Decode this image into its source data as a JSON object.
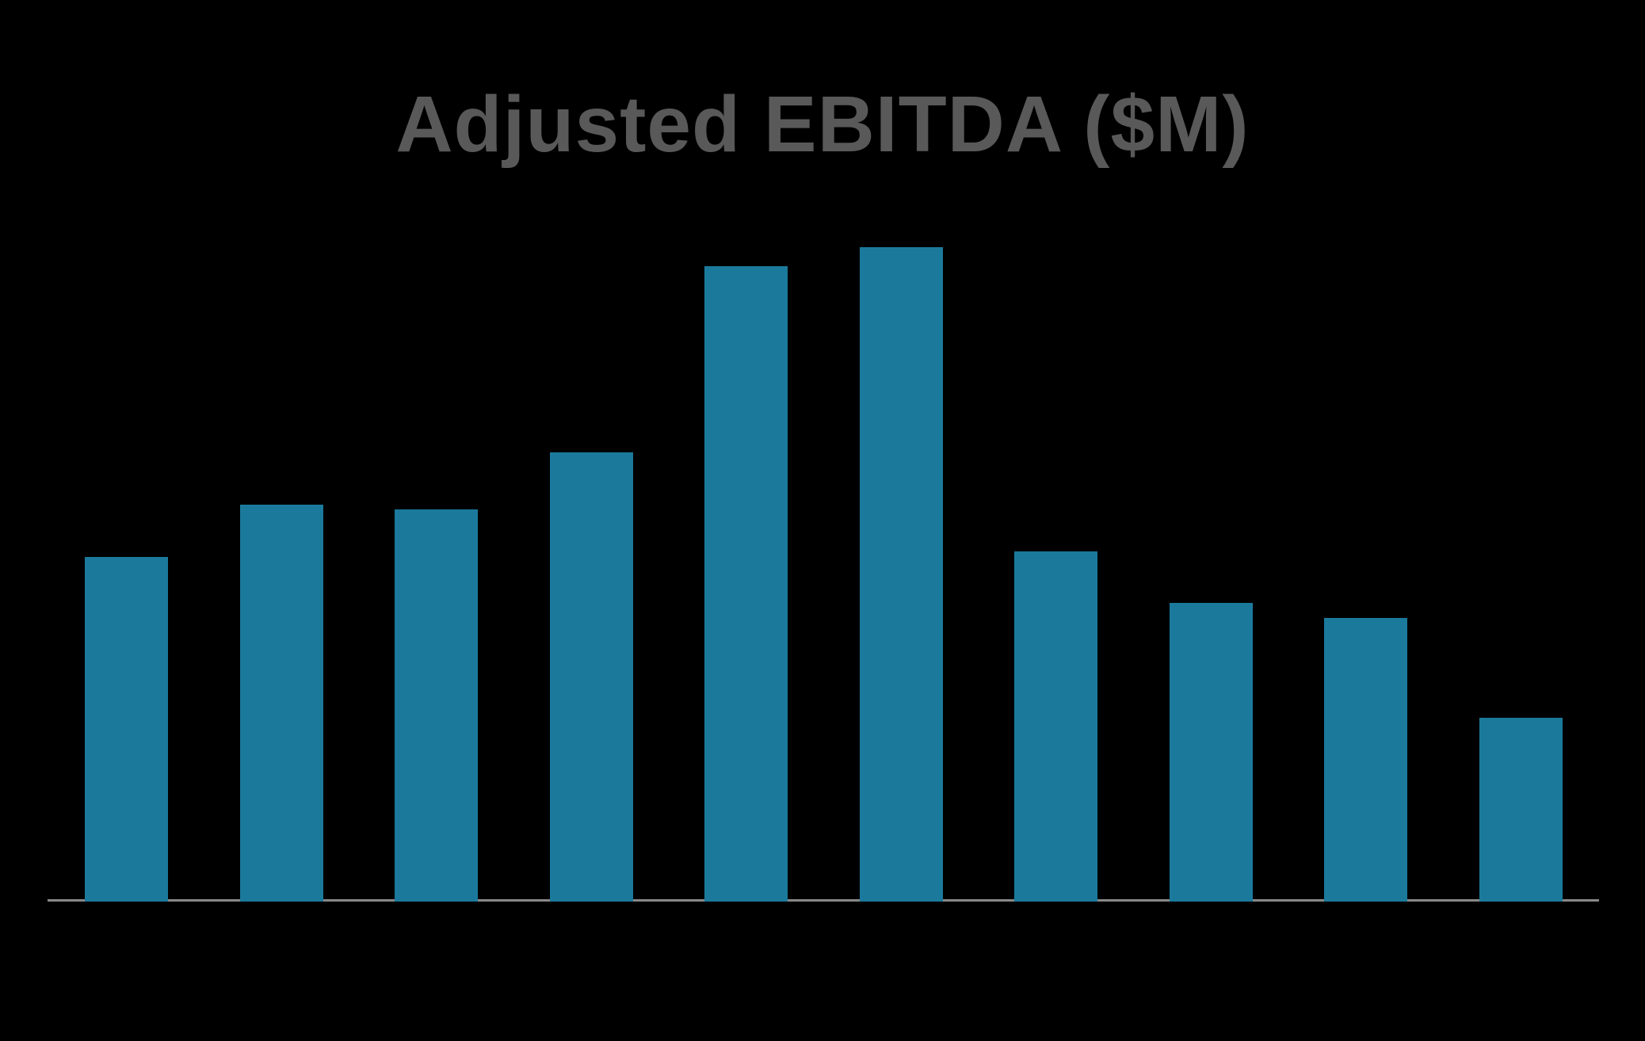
{
  "chart_data": {
    "type": "bar",
    "title": "Adjusted EBITDA ($M)",
    "categories": [],
    "values": [
      52.7,
      60.7,
      59.9,
      68.7,
      97.1,
      100.0,
      53.5,
      45.6,
      43.4,
      28.1
    ],
    "xlabel": "",
    "ylabel": "",
    "ylim": [
      0,
      100
    ],
    "grid": false,
    "legend": null,
    "axis_tick_labels_visible": false,
    "data_labels_visible": false,
    "note": "No axis tick labels, gridlines, legend, or data labels are visible in the image; values are estimated from relative bar heights, normalized so the tallest bar = 100.",
    "colors": {
      "bar_fill": "#1B7A9C",
      "axis_line": "#888888",
      "title_text": "#595959",
      "background": "#000000"
    }
  }
}
